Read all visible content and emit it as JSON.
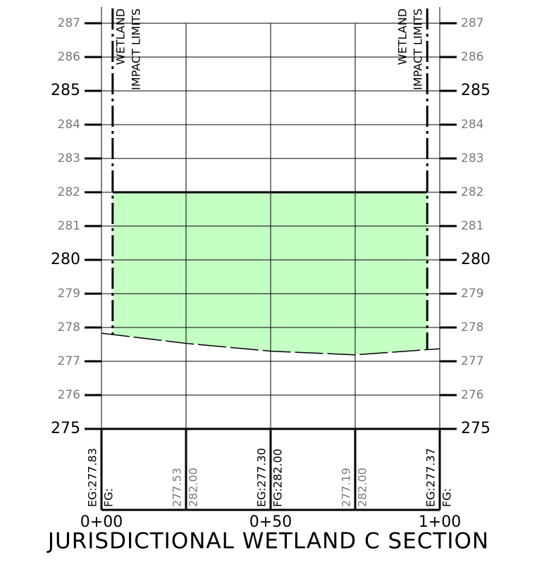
{
  "chart_data": {
    "type": "section",
    "title": "JURISDICTIONAL WETLAND C SECTION",
    "xlim": [
      0,
      100
    ],
    "ylim": [
      275,
      287
    ],
    "xticks": [
      {
        "value": 0,
        "label": "0+00"
      },
      {
        "value": 50,
        "label": "0+50"
      },
      {
        "value": 100,
        "label": "1+00"
      }
    ],
    "yticks": [
      275,
      276,
      277,
      278,
      279,
      280,
      281,
      282,
      283,
      284,
      285,
      286,
      287
    ],
    "major_yticks": [
      275,
      280,
      285
    ],
    "grid_stations": [
      0,
      25,
      50,
      75,
      100
    ],
    "grid": true,
    "series": [
      {
        "name": "EG",
        "color": "#000000",
        "x": [
          0,
          25,
          50,
          75,
          100
        ],
        "values": [
          277.83,
          277.53,
          277.3,
          277.19,
          277.37
        ],
        "value_labels": [
          "EG:277.83",
          "277.53",
          "EG:277.30",
          "277.19",
          "EG:277.37"
        ]
      },
      {
        "name": "FG",
        "color": "#000000",
        "x": [
          0,
          25,
          50,
          75,
          100
        ],
        "values": [
          null,
          282.0,
          282.0,
          282.0,
          null
        ],
        "value_labels": [
          "FG:",
          "282.00",
          "FG:282.00",
          "282.00",
          "FG:"
        ]
      }
    ],
    "fill_color": "#c4ffc4",
    "wetland_limits": [
      {
        "station": 3.3,
        "lines": [
          "WETLAND",
          "IMPACT LIMITS"
        ]
      },
      {
        "station": 96.3,
        "lines": [
          "WETLAND",
          "IMPACT LIMITS"
        ]
      }
    ]
  }
}
